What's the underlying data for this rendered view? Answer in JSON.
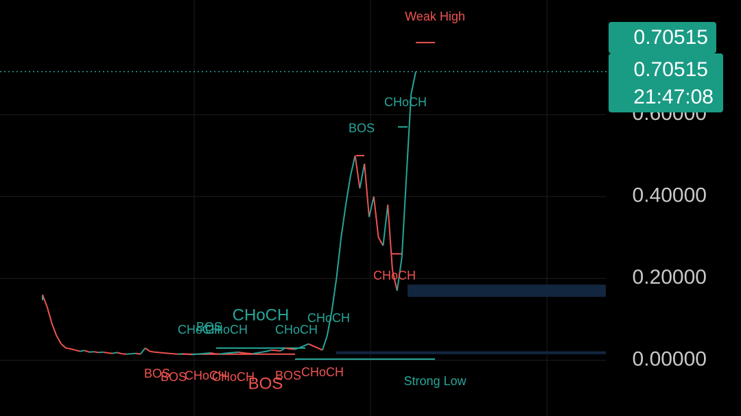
{
  "chart_data": {
    "type": "line",
    "ylim": [
      -0.136,
      0.88
    ],
    "yticks": [
      {
        "value": 0,
        "label": "0.00000"
      },
      {
        "value": 0.2,
        "label": "0.20000"
      },
      {
        "value": 0.4,
        "label": "0.40000"
      },
      {
        "value": 0.6,
        "label": "0.60000"
      }
    ],
    "grid": true,
    "up_color": "#26a69a",
    "down_color": "#ef5350",
    "series": [
      {
        "values": [
          0.16,
          0.13,
          0.09,
          0.06,
          0.04,
          0.03,
          0.028,
          0.025,
          0.022,
          0.024,
          0.02,
          0.021,
          0.019,
          0.02,
          0.018,
          0.017,
          0.019,
          0.016,
          0.015,
          0.016,
          0.017,
          0.015,
          0.03,
          0.022,
          0.02,
          0.019,
          0.018,
          0.017,
          0.016,
          0.015,
          0.016,
          0.015,
          0.014,
          0.015,
          0.016,
          0.017,
          0.018,
          0.016,
          0.015,
          0.017,
          0.018,
          0.019,
          0.02,
          0.018,
          0.017,
          0.016,
          0.018,
          0.02,
          0.022,
          0.025,
          0.024,
          0.023,
          0.03,
          0.028,
          0.027,
          0.03,
          0.035,
          0.04,
          0.035,
          0.03,
          0.025,
          0.06,
          0.12,
          0.2,
          0.3,
          0.38,
          0.45,
          0.5,
          0.42,
          0.48,
          0.35,
          0.4,
          0.3,
          0.28,
          0.38,
          0.22,
          0.17,
          0.25,
          0.45,
          0.65,
          0.70515
        ]
      }
    ],
    "levels": [
      {
        "value": 0.776,
        "color": "#ef5350"
      },
      {
        "value": 0.003,
        "color": "#26a69a"
      },
      {
        "value": 0.03,
        "color": "#26a69a"
      },
      {
        "value": 0.015,
        "color": "#ef5350"
      },
      {
        "value": 0.57,
        "color": "#26a69a"
      },
      {
        "value": 0.5,
        "color": "#ef5350"
      },
      {
        "value": 0.26,
        "color": "#ef5350"
      }
    ],
    "zones": [
      {
        "low": 0.155,
        "high": 0.185,
        "color": "#132640"
      },
      {
        "low": 0.015,
        "high": 0.022,
        "color": "#132640"
      }
    ],
    "last_price": {
      "value": 0.70515,
      "label": "0.70515"
    },
    "countdown": "21:47:08",
    "annotations": [
      {
        "text": "Weak High",
        "color": "#ef5350"
      },
      {
        "text": "Strong Low",
        "color": "#26a69a"
      },
      {
        "text": "CHoCH",
        "color": "#26a69a"
      },
      {
        "text": "BOS",
        "color": "#26a69a"
      },
      {
        "text": "CHoCH",
        "color": "#ef5350"
      },
      {
        "text": "CHoCH",
        "color": "#26a69a"
      },
      {
        "text": "CHoCH",
        "color": "#26a69a"
      },
      {
        "text": "CHoCH",
        "color": "#26a69a"
      },
      {
        "text": "CHoCH",
        "color": "#26a69a"
      },
      {
        "text": "BOS",
        "color": "#26a69a"
      },
      {
        "text": "CHoCH",
        "color": "#26a69a"
      },
      {
        "text": "BOS",
        "color": "#ef5350"
      },
      {
        "text": "BOS",
        "color": "#ef5350"
      },
      {
        "text": "CHoCH",
        "color": "#ef5350"
      },
      {
        "text": "CHoCH",
        "color": "#ef5350"
      },
      {
        "text": "BOS",
        "color": "#ef5350"
      },
      {
        "text": "BOS",
        "color": "#ef5350"
      },
      {
        "text": "CHoCH",
        "color": "#ef5350"
      }
    ]
  }
}
